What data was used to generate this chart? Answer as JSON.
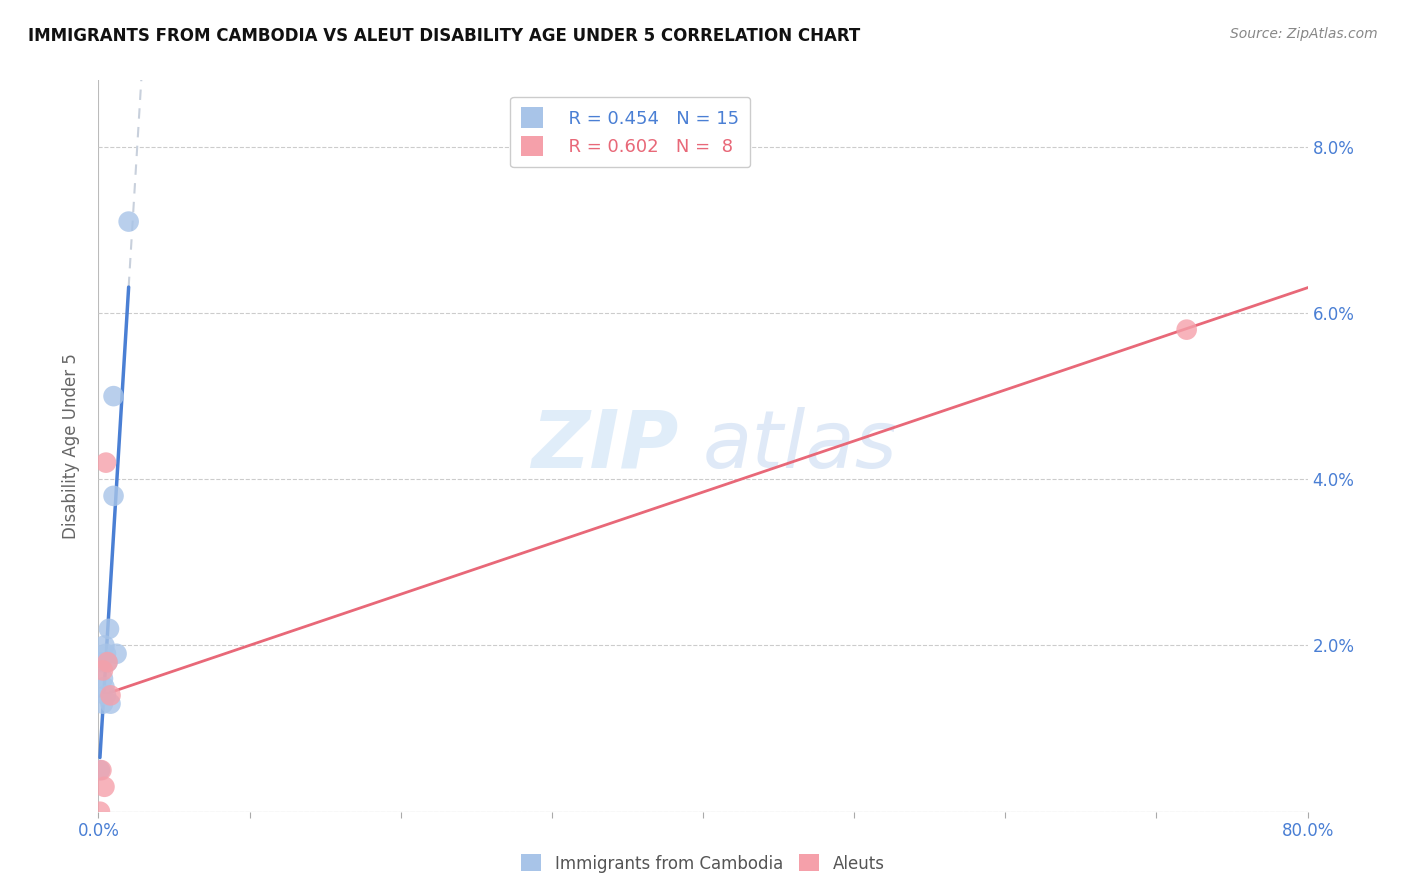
{
  "title": "IMMIGRANTS FROM CAMBODIA VS ALEUT DISABILITY AGE UNDER 5 CORRELATION CHART",
  "source": "Source: ZipAtlas.com",
  "ylabel": "Disability Age Under 5",
  "xlim": [
    0.0,
    0.8
  ],
  "ylim": [
    0.0,
    0.088
  ],
  "xticks": [
    0.0,
    0.1,
    0.2,
    0.3,
    0.4,
    0.5,
    0.6,
    0.7,
    0.8
  ],
  "xticklabels": [
    "0.0%",
    "",
    "",
    "",
    "",
    "",
    "",
    "",
    "80.0%"
  ],
  "yticks": [
    0.0,
    0.02,
    0.04,
    0.06,
    0.08
  ],
  "yticklabels": [
    "",
    "2.0%",
    "4.0%",
    "6.0%",
    "8.0%"
  ],
  "cambodia_color": "#a8c4e8",
  "aleut_color": "#f5a0aa",
  "cambodia_line_color": "#4a7fd4",
  "aleut_line_color": "#e86878",
  "trendline_dashed_color": "#c8d0dc",
  "legend_R_cambodia": "R = 0.454",
  "legend_N_cambodia": "N = 15",
  "legend_R_aleut": "R = 0.602",
  "legend_N_aleut": "N =  8",
  "cambodia_x": [
    0.001,
    0.002,
    0.003,
    0.003,
    0.004,
    0.004,
    0.005,
    0.005,
    0.006,
    0.007,
    0.008,
    0.01,
    0.01,
    0.012,
    0.02
  ],
  "cambodia_y": [
    0.005,
    0.018,
    0.016,
    0.013,
    0.02,
    0.015,
    0.019,
    0.014,
    0.018,
    0.022,
    0.013,
    0.038,
    0.05,
    0.019,
    0.071
  ],
  "aleut_x": [
    0.001,
    0.002,
    0.003,
    0.004,
    0.005,
    0.006,
    0.008,
    0.72
  ],
  "aleut_y": [
    0.0,
    0.005,
    0.017,
    0.003,
    0.042,
    0.018,
    0.014,
    0.058
  ],
  "watermark_zip": "ZIP",
  "watermark_atlas": "atlas",
  "background_color": "#ffffff",
  "grid_color": "#cccccc",
  "title_fontsize": 12,
  "tick_fontsize": 12,
  "legend_fontsize": 13
}
